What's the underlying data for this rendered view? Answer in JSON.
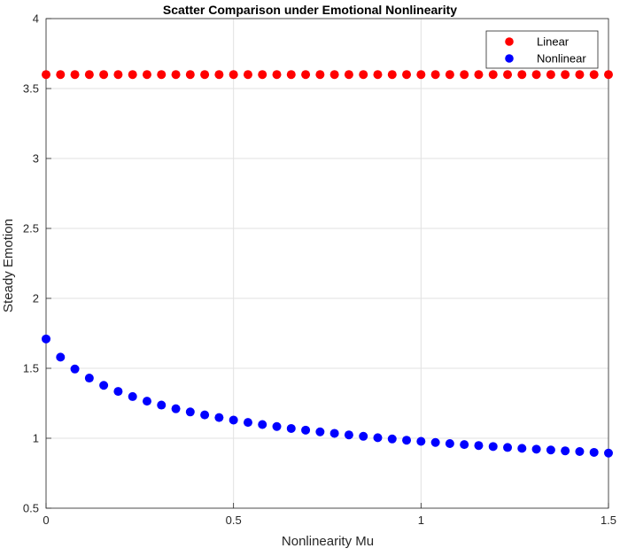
{
  "chart_data": {
    "type": "scatter",
    "title": "Scatter Comparison under Emotional Nonlinearity",
    "xlabel": "Nonlinearity Mu",
    "ylabel": "Steady Emotion",
    "xlim": [
      0,
      1.5
    ],
    "ylim": [
      0.5,
      4
    ],
    "xticks": [
      0,
      0.5,
      1,
      1.5
    ],
    "xtick_labels": [
      "0",
      "0.5",
      "1",
      "1.5"
    ],
    "yticks": [
      0.5,
      1,
      1.5,
      2,
      2.5,
      3,
      3.5,
      4
    ],
    "ytick_labels": [
      "0.5",
      "1",
      "1.5",
      "2",
      "2.5",
      "3",
      "3.5",
      "4"
    ],
    "grid": true,
    "legend_position": "top-right",
    "x": [
      0,
      0.0385,
      0.0769,
      0.1154,
      0.1538,
      0.1923,
      0.2308,
      0.2692,
      0.3077,
      0.3462,
      0.3846,
      0.4231,
      0.4615,
      0.5,
      0.5385,
      0.5769,
      0.6154,
      0.6538,
      0.6923,
      0.7308,
      0.7692,
      0.8077,
      0.8462,
      0.8846,
      0.9231,
      0.9615,
      1,
      1.0385,
      1.0769,
      1.1154,
      1.1538,
      1.1923,
      1.2308,
      1.2692,
      1.3077,
      1.3462,
      1.3846,
      1.4231,
      1.4615,
      1.5
    ],
    "series": [
      {
        "name": "Linear",
        "color": "#ff0000",
        "values": [
          3.6,
          3.6,
          3.6,
          3.6,
          3.6,
          3.6,
          3.6,
          3.6,
          3.6,
          3.6,
          3.6,
          3.6,
          3.6,
          3.6,
          3.6,
          3.6,
          3.6,
          3.6,
          3.6,
          3.6,
          3.6,
          3.6,
          3.6,
          3.6,
          3.6,
          3.6,
          3.6,
          3.6,
          3.6,
          3.6,
          3.6,
          3.6,
          3.6,
          3.6,
          3.6,
          3.6,
          3.6,
          3.6,
          3.6,
          3.6
        ]
      },
      {
        "name": "Nonlinear",
        "color": "#0000ff",
        "values": [
          1.71,
          1.58,
          1.495,
          1.43,
          1.378,
          1.335,
          1.298,
          1.265,
          1.237,
          1.211,
          1.188,
          1.167,
          1.148,
          1.13,
          1.113,
          1.098,
          1.084,
          1.07,
          1.058,
          1.046,
          1.035,
          1.024,
          1.014,
          1.004,
          0.995,
          0.986,
          0.978,
          0.97,
          0.962,
          0.955,
          0.948,
          0.941,
          0.934,
          0.928,
          0.922,
          0.916,
          0.91,
          0.905,
          0.899,
          0.894
        ]
      }
    ]
  }
}
